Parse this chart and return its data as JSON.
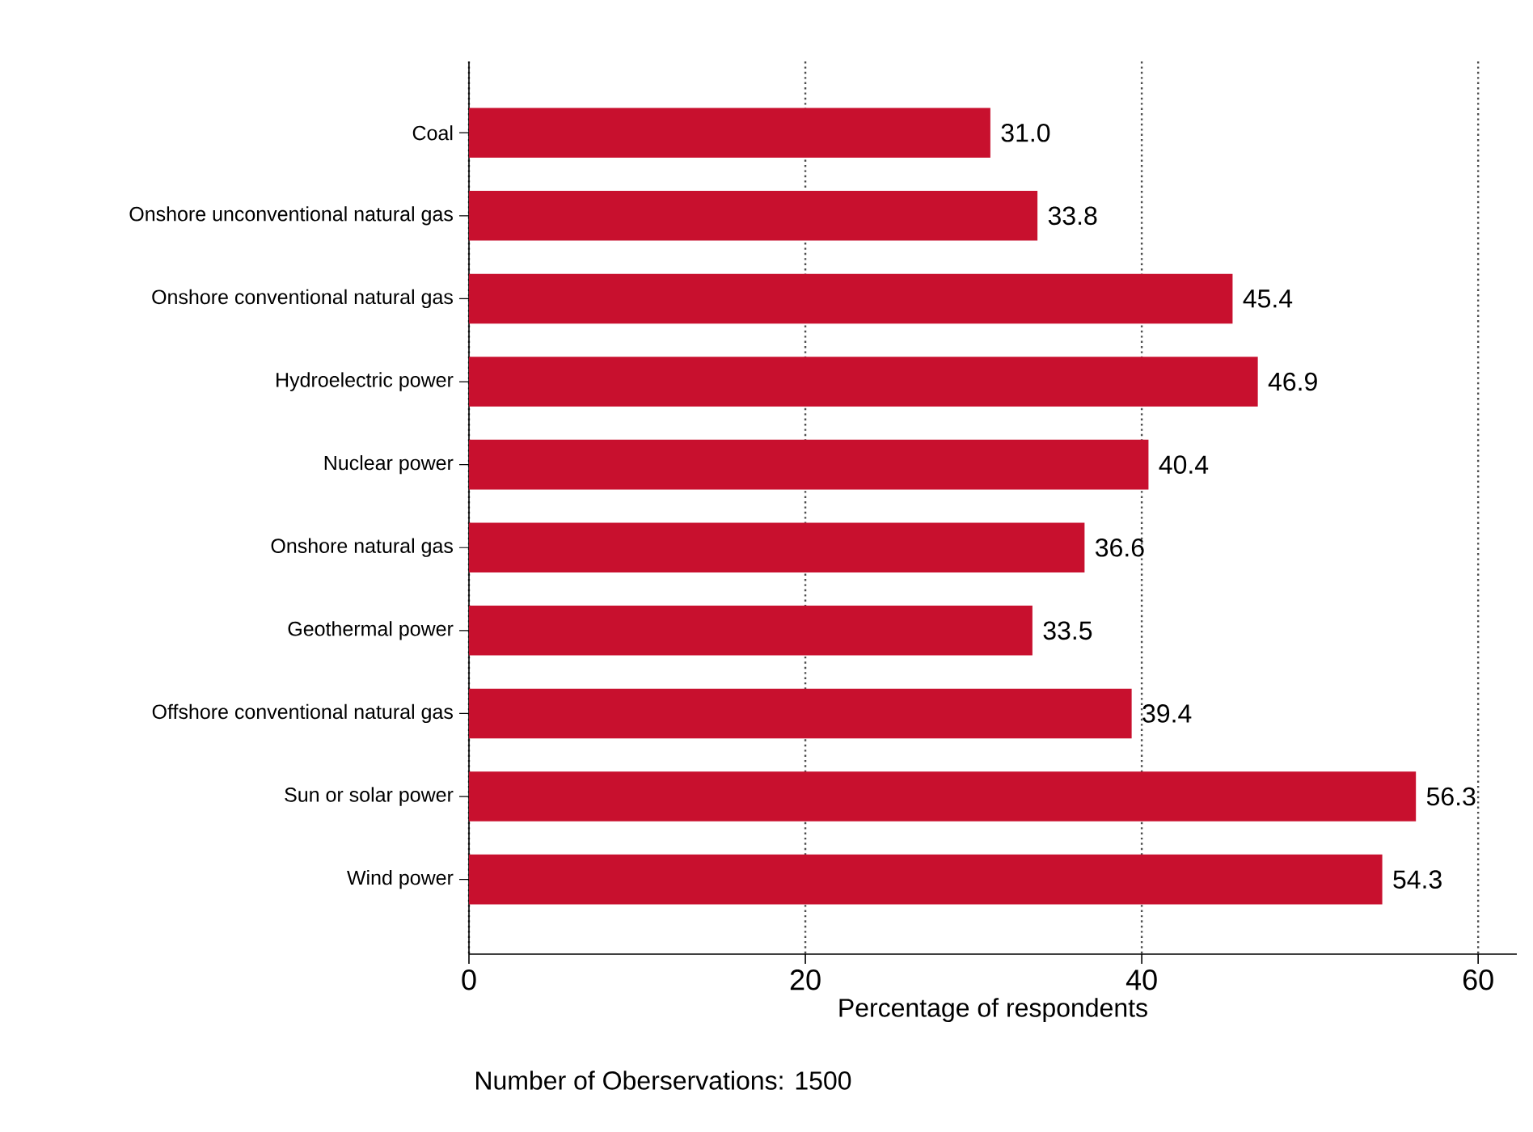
{
  "chart_data": {
    "type": "bar",
    "orientation": "horizontal",
    "xlabel": "Percentage of respondents",
    "annotations": [
      "Number of Oberservations: 1500"
    ],
    "categories": [
      "Coal",
      "Onshore unconventional natural gas",
      "Onshore conventional natural gas",
      "Hydroelectric power",
      "Nuclear power",
      "Onshore natural gas",
      "Geothermal power",
      "Offshore conventional natural gas",
      "Sun or solar power",
      "Wind power"
    ],
    "values": [
      31.0,
      33.8,
      45.4,
      46.9,
      40.4,
      36.6,
      33.5,
      39.4,
      56.3,
      54.3
    ],
    "value_labels": [
      "31.0",
      "33.8",
      "45.4",
      "46.9",
      "40.4",
      "36.6",
      "33.5",
      "39.4",
      "56.3",
      "54.3"
    ],
    "color": "#c8102e",
    "xlim": [
      0,
      62.3
    ],
    "xticks": [
      0,
      20,
      40,
      60
    ],
    "grid": "x"
  }
}
